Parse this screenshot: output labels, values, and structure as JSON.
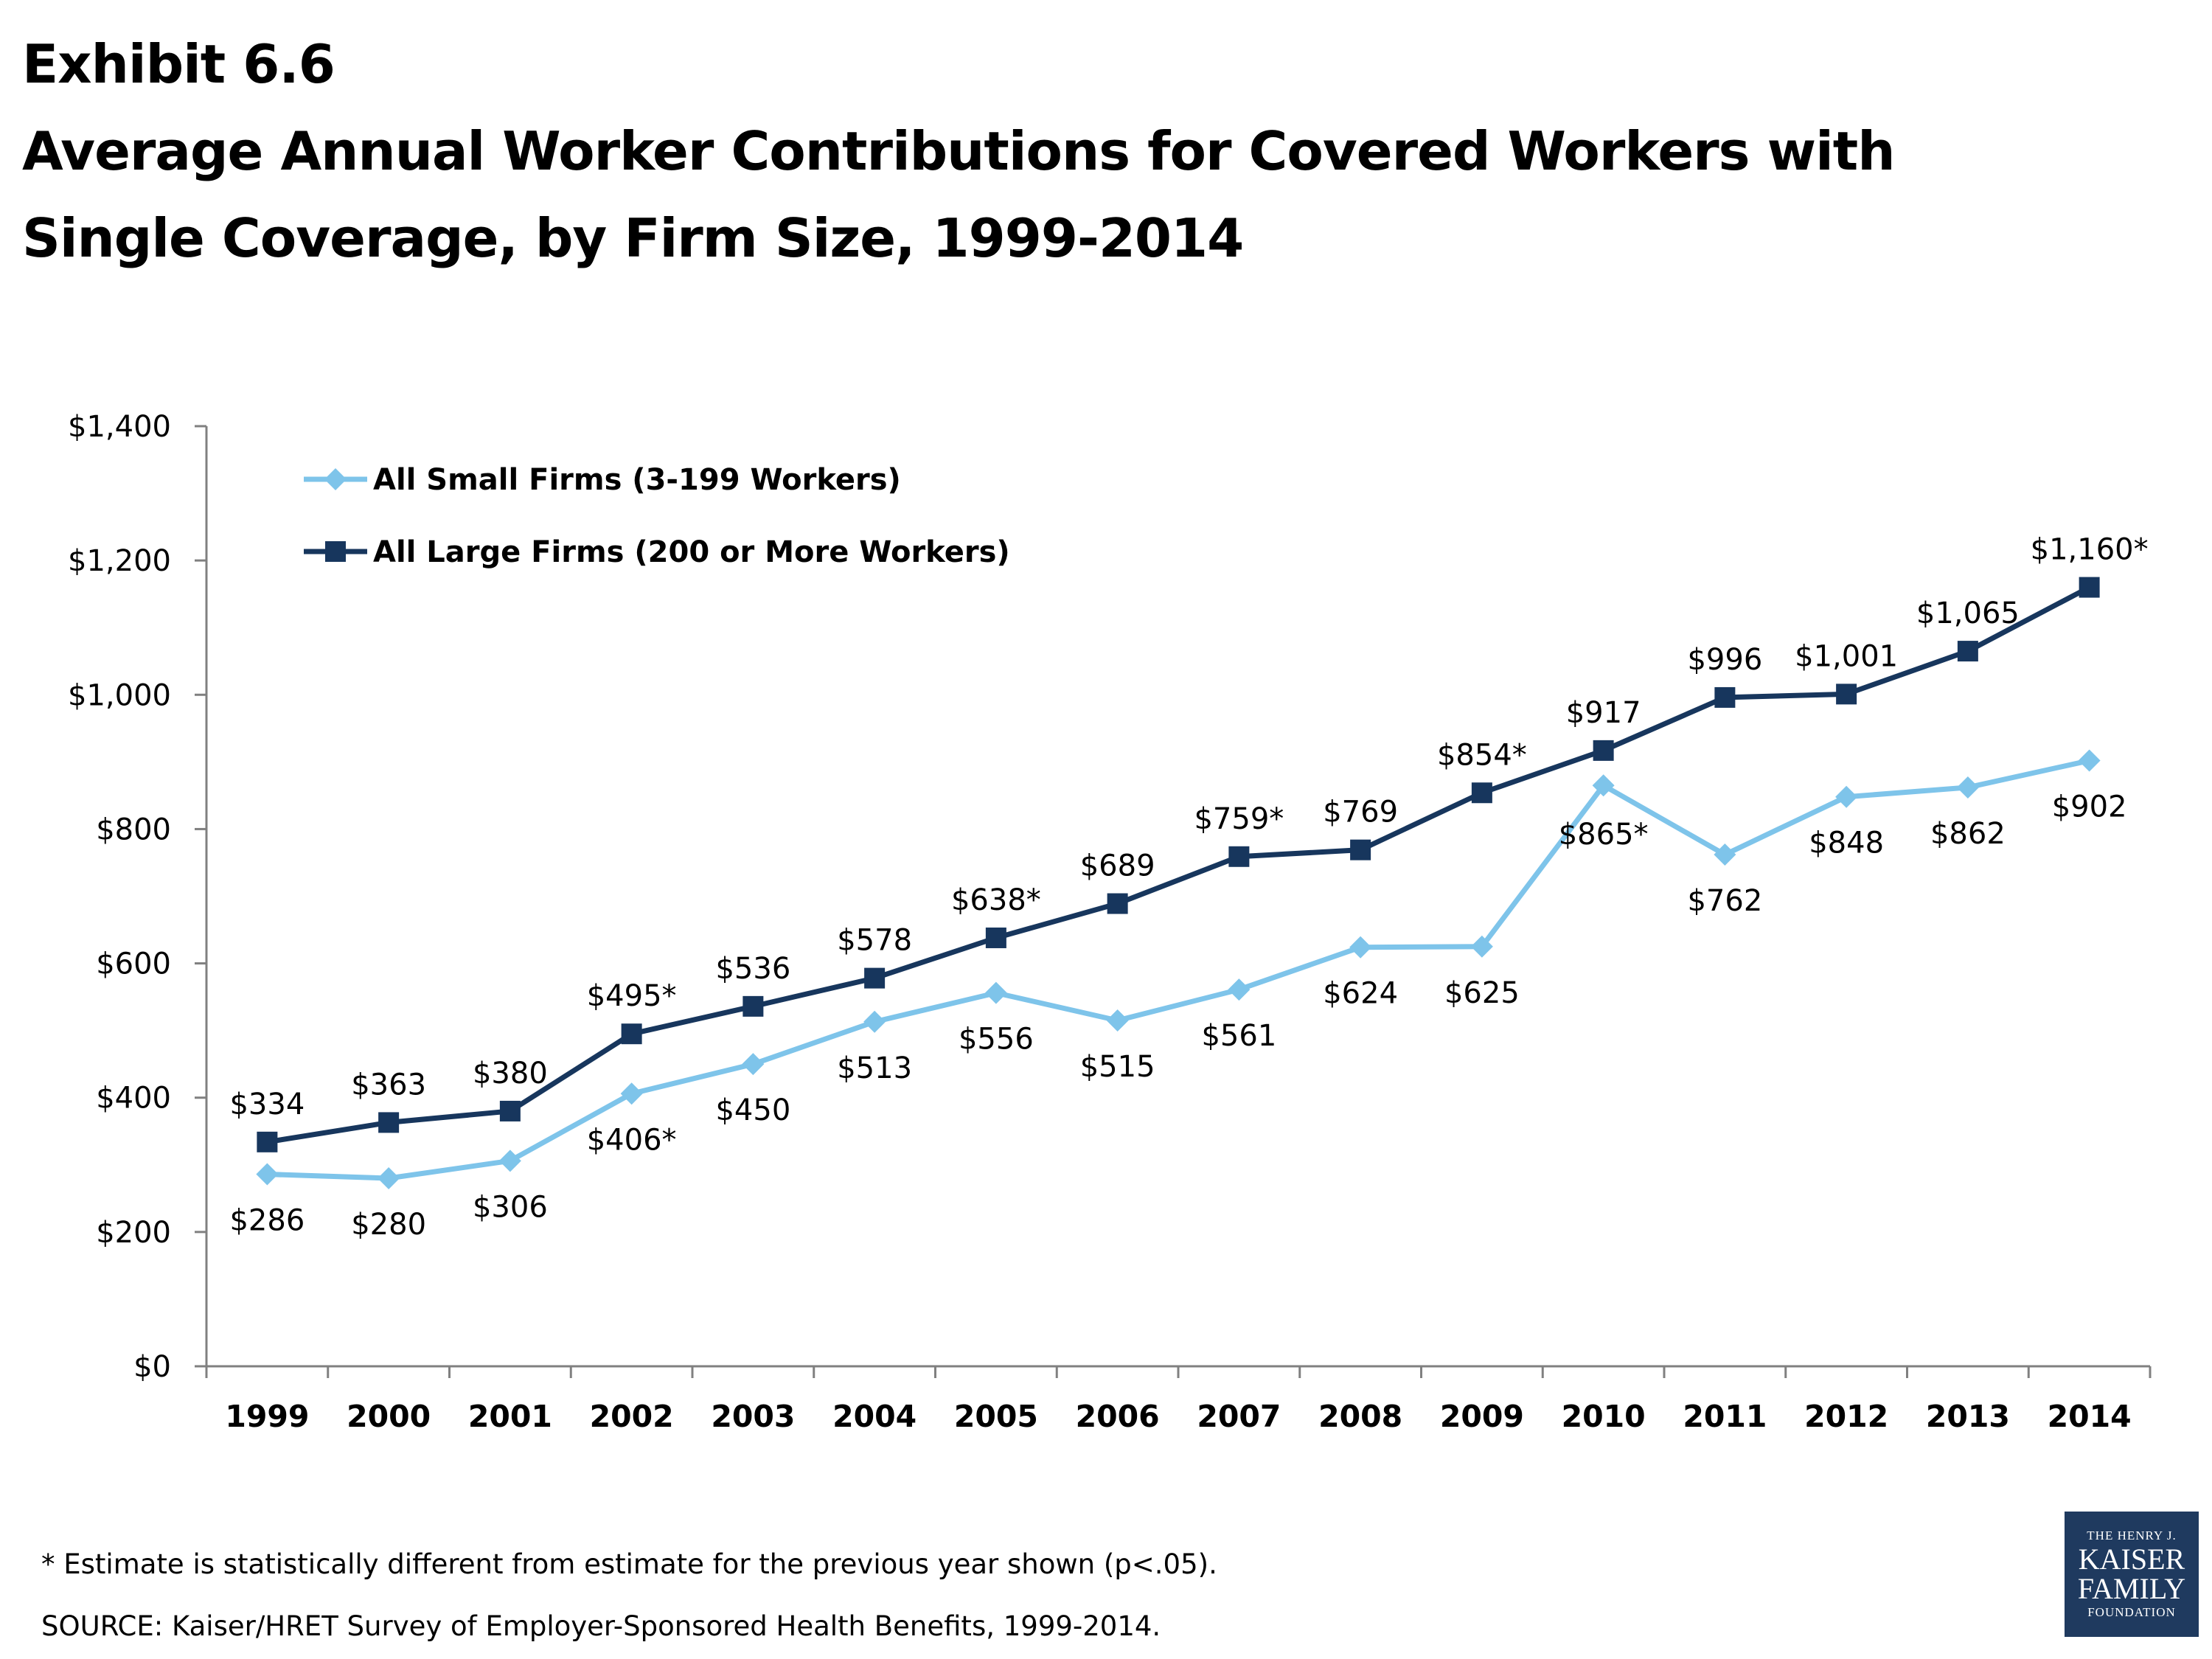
{
  "heading": {
    "line1": "Exhibit 6.6",
    "line2": "Average Annual Worker Contributions for Covered Workers with",
    "line3": "Single Coverage, by Firm Size, 1999-2014"
  },
  "chart_data": {
    "type": "line",
    "title": "Average Annual Worker Contributions for Covered Workers with Single Coverage, by Firm Size, 1999-2014",
    "x": [
      "1999",
      "2000",
      "2001",
      "2002",
      "2003",
      "2004",
      "2005",
      "2006",
      "2007",
      "2008",
      "2009",
      "2010",
      "2011",
      "2012",
      "2013",
      "2014"
    ],
    "ylim": [
      0,
      1400
    ],
    "yticks": [
      0,
      200,
      400,
      600,
      800,
      1000,
      1200,
      1400
    ],
    "ytick_labels": [
      "$0",
      "$200",
      "$400",
      "$600",
      "$800",
      "$1,000",
      "$1,200",
      "$1,400"
    ],
    "grid": false,
    "legend_position": "top-left",
    "series": [
      {
        "name": "All Small Firms (3-199 Workers)",
        "color": "#7ec4ea",
        "marker": "diamond",
        "values": [
          286,
          280,
          306,
          406,
          450,
          513,
          556,
          515,
          561,
          624,
          625,
          865,
          762,
          848,
          862,
          902
        ],
        "labels": [
          "$286",
          "$280",
          "$306",
          "$406*",
          "$450",
          "$513",
          "$556",
          "$515",
          "$561",
          "$624",
          "$625",
          "$865*",
          "$762",
          "$848",
          "$862",
          "$902"
        ]
      },
      {
        "name": "All Large Firms (200 or More Workers)",
        "color": "#17365d",
        "marker": "square",
        "values": [
          334,
          363,
          380,
          495,
          536,
          578,
          638,
          689,
          759,
          769,
          854,
          917,
          996,
          1001,
          1065,
          1160
        ],
        "labels": [
          "$334",
          "$363",
          "$380",
          "$495*",
          "$536",
          "$578",
          "$638*",
          "$689",
          "$759*",
          "$769",
          "$854*",
          "$917",
          "$996",
          "$1,001",
          "$1,065",
          "$1,160*"
        ]
      }
    ]
  },
  "footnotes": {
    "note": "* Estimate is statistically different from estimate for the previous year shown (p<.05).",
    "source": "SOURCE:  Kaiser/HRET Survey of Employer-Sponsored Health Benefits, 1999-2014."
  },
  "logo": {
    "line1": "THE HENRY J.",
    "line2": "KAISER",
    "line3": "FAMILY",
    "line4": "FOUNDATION"
  }
}
